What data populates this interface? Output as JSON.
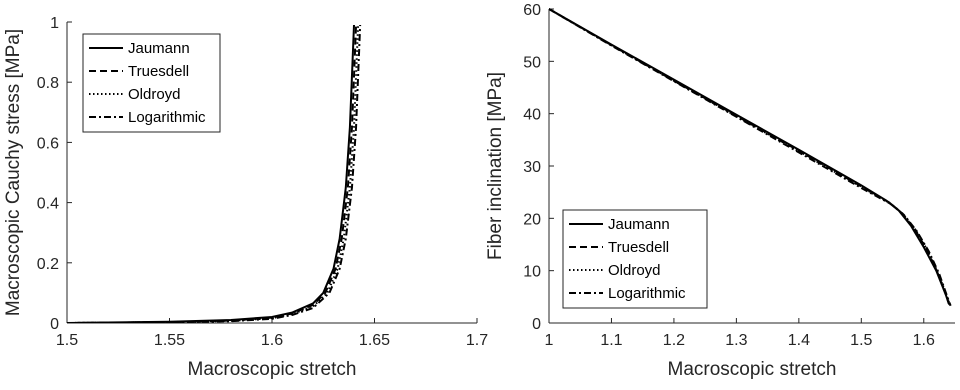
{
  "chart_data": [
    {
      "type": "line",
      "xlabel": "Macroscopic stretch",
      "ylabel": "Macroscopic Cauchy stress [MPa]",
      "xlim": [
        1.5,
        1.7
      ],
      "ylim": [
        0,
        1
      ],
      "xticks": [
        "1.5",
        "1.55",
        "1.6",
        "1.65",
        "1.7"
      ],
      "yticks": [
        "0",
        "0.2",
        "0.4",
        "0.6",
        "0.8",
        "1"
      ],
      "grid": false,
      "legend": "top-left",
      "series": [
        {
          "name": "Jaumann",
          "dash": "solid",
          "x": [
            1.5,
            1.55,
            1.58,
            1.6,
            1.61,
            1.62,
            1.625,
            1.63,
            1.633,
            1.636,
            1.638,
            1.64
          ],
          "y": [
            0,
            0.004,
            0.01,
            0.02,
            0.035,
            0.065,
            0.1,
            0.18,
            0.28,
            0.45,
            0.65,
            0.99
          ]
        },
        {
          "name": "Truesdell",
          "dash": "dashed",
          "x": [
            1.5,
            1.55,
            1.58,
            1.6,
            1.61,
            1.62,
            1.626,
            1.631,
            1.634,
            1.637,
            1.639,
            1.641
          ],
          "y": [
            0,
            0.003,
            0.008,
            0.018,
            0.032,
            0.06,
            0.1,
            0.18,
            0.28,
            0.45,
            0.65,
            0.99
          ]
        },
        {
          "name": "Oldroyd",
          "dash": "dotted",
          "x": [
            1.5,
            1.55,
            1.58,
            1.6,
            1.61,
            1.62,
            1.627,
            1.632,
            1.635,
            1.638,
            1.64,
            1.642
          ],
          "y": [
            0,
            0.003,
            0.007,
            0.016,
            0.03,
            0.055,
            0.1,
            0.18,
            0.28,
            0.45,
            0.65,
            0.99
          ]
        },
        {
          "name": "Logarithmic",
          "dash": "dashdot",
          "x": [
            1.5,
            1.55,
            1.58,
            1.6,
            1.61,
            1.62,
            1.628,
            1.633,
            1.636,
            1.639,
            1.641,
            1.643
          ],
          "y": [
            0,
            0.003,
            0.006,
            0.014,
            0.027,
            0.05,
            0.1,
            0.18,
            0.28,
            0.45,
            0.65,
            0.99
          ]
        }
      ]
    },
    {
      "type": "line",
      "xlabel": "Macroscopic stretch",
      "ylabel": "Fiber inclination [MPa]",
      "xlim": [
        1,
        1.65
      ],
      "ylim": [
        0,
        60
      ],
      "xticks": [
        "1",
        "1.1",
        "1.2",
        "1.3",
        "1.4",
        "1.5",
        "1.6"
      ],
      "yticks": [
        "0",
        "10",
        "20",
        "30",
        "40",
        "50",
        "60"
      ],
      "grid": false,
      "legend": "bottom-left",
      "series": [
        {
          "name": "Jaumann",
          "dash": "solid",
          "x": [
            1,
            1.1,
            1.2,
            1.3,
            1.4,
            1.5,
            1.54,
            1.56,
            1.58,
            1.6,
            1.62,
            1.635,
            1.64
          ],
          "y": [
            60,
            53.2,
            46.5,
            39.8,
            33.1,
            26.3,
            23.4,
            21.5,
            18.5,
            14.5,
            10,
            5.5,
            3.7
          ]
        },
        {
          "name": "Truesdell",
          "dash": "dashed",
          "x": [
            1,
            1.1,
            1.2,
            1.3,
            1.4,
            1.5,
            1.545,
            1.565,
            1.585,
            1.605,
            1.622,
            1.636,
            1.641
          ],
          "y": [
            60,
            53.1,
            46.3,
            39.6,
            32.9,
            26.1,
            23.0,
            21.0,
            18.0,
            14.0,
            9.6,
            5.2,
            3.5
          ]
        },
        {
          "name": "Oldroyd",
          "dash": "dotted",
          "x": [
            1,
            1.1,
            1.2,
            1.3,
            1.4,
            1.5,
            1.546,
            1.566,
            1.586,
            1.606,
            1.623,
            1.637,
            1.642
          ],
          "y": [
            60,
            53.1,
            46.3,
            39.5,
            32.8,
            26.0,
            22.9,
            20.9,
            17.9,
            13.9,
            9.5,
            5.1,
            3.4
          ]
        },
        {
          "name": "Logarithmic",
          "dash": "dashdot",
          "x": [
            1,
            1.1,
            1.2,
            1.3,
            1.4,
            1.5,
            1.548,
            1.568,
            1.588,
            1.608,
            1.625,
            1.638,
            1.643
          ],
          "y": [
            60,
            53.0,
            46.2,
            39.4,
            32.6,
            25.8,
            22.7,
            20.7,
            17.7,
            13.7,
            9.3,
            4.9,
            3.3
          ]
        }
      ]
    }
  ]
}
